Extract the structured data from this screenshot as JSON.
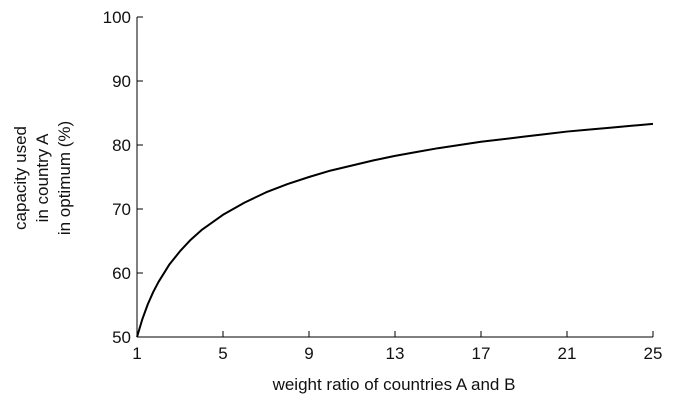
{
  "chart_data": {
    "type": "line",
    "title": "",
    "xlabel": "weight ratio of countries A and B",
    "ylabel_lines": [
      "capacity used",
      "in country A",
      "in optimum (%)"
    ],
    "xlim": [
      1,
      25
    ],
    "ylim": [
      50,
      100
    ],
    "xticks": [
      1,
      5,
      9,
      13,
      17,
      21,
      25
    ],
    "yticks": [
      50,
      60,
      70,
      80,
      90,
      100
    ],
    "grid": false,
    "legend": "none",
    "line_color": "#000000",
    "series": [
      {
        "x": [
          1,
          1.25,
          1.5,
          1.75,
          2,
          2.5,
          3,
          3.5,
          4,
          4.5,
          5,
          6,
          7,
          8,
          9,
          10,
          11,
          12,
          13,
          14,
          15,
          16,
          17,
          18,
          19,
          20,
          21,
          22,
          23,
          24,
          25
        ],
        "values": [
          50.0,
          52.8,
          55.1,
          57.0,
          58.6,
          61.3,
          63.4,
          65.2,
          66.7,
          67.9,
          69.1,
          71.0,
          72.6,
          73.9,
          75.0,
          76.0,
          76.8,
          77.6,
          78.3,
          78.9,
          79.5,
          80.0,
          80.5,
          80.9,
          81.3,
          81.7,
          82.1,
          82.4,
          82.7,
          83.0,
          83.3
        ]
      }
    ]
  }
}
